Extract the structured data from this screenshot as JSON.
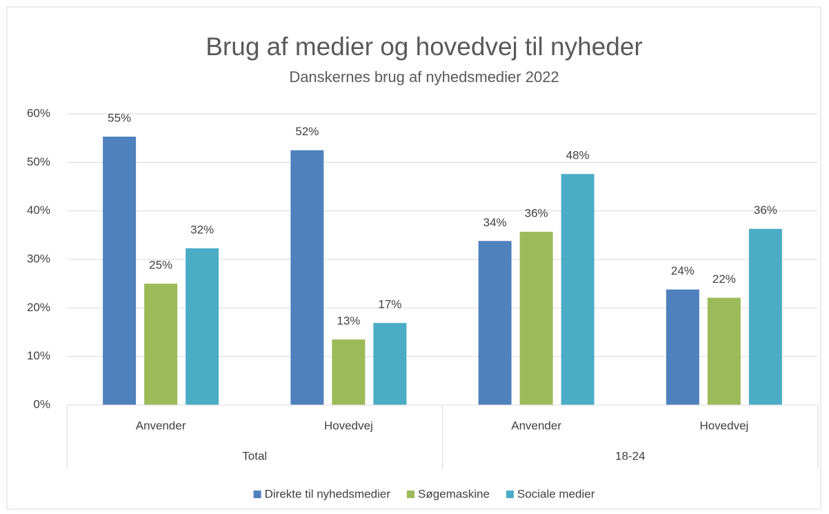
{
  "chart_data": {
    "type": "bar",
    "title": "Brug af medier og hovedvej til nyheder",
    "subtitle": "Danskernes brug af nyhedsmedier 2022",
    "categories": [
      "Anvender",
      "Hovedvej",
      "Anvender",
      "Hovedvej"
    ],
    "groups": [
      "Total",
      "18-24"
    ],
    "series": [
      {
        "name": "Direkte til nyhedsmedier",
        "color": "#4f81bd",
        "values": [
          55.3,
          52.5,
          33.8,
          23.8
        ],
        "value_labels": [
          "55%",
          "52%",
          "34%",
          "24%"
        ]
      },
      {
        "name": "Søgemaskine",
        "color": "#9bbb59",
        "values": [
          25.0,
          13.5,
          35.7,
          22.1
        ],
        "value_labels": [
          "25%",
          "13%",
          "36%",
          "22%"
        ]
      },
      {
        "name": "Sociale medier",
        "color": "#4bacc6",
        "values": [
          32.3,
          16.9,
          47.6,
          36.3
        ],
        "value_labels": [
          "32%",
          "17%",
          "48%",
          "36%"
        ]
      }
    ],
    "ylim": [
      0,
      60
    ],
    "yticks": [
      {
        "value": 0,
        "label": "0%"
      },
      {
        "value": 10,
        "label": "10%"
      },
      {
        "value": 20,
        "label": "20%"
      },
      {
        "value": 30,
        "label": "30%"
      },
      {
        "value": 40,
        "label": "40%"
      },
      {
        "value": 50,
        "label": "50%"
      },
      {
        "value": 60,
        "label": "60%"
      }
    ],
    "grid": true,
    "legend": "bottom"
  }
}
